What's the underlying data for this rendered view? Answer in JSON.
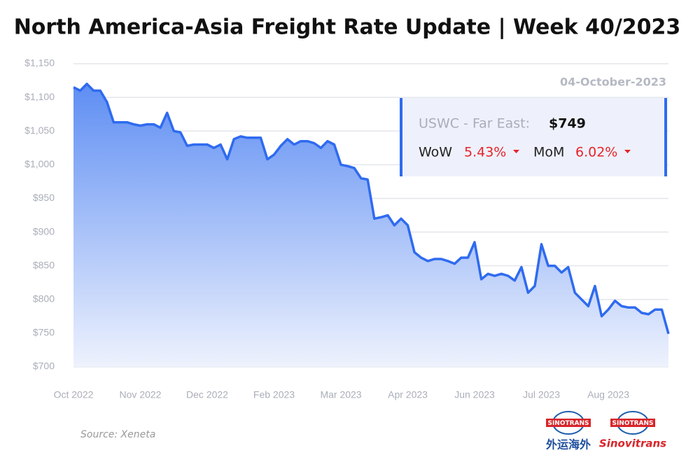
{
  "chart_data": {
    "type": "area",
    "title": "North America-Asia Freight Rate Update | Week 40/2023",
    "values": [
      1115,
      1110,
      1120,
      1110,
      1110,
      1093,
      1063,
      1063,
      1063,
      1060,
      1058,
      1060,
      1060,
      1055,
      1077,
      1050,
      1048,
      1028,
      1030,
      1030,
      1030,
      1025,
      1030,
      1008,
      1038,
      1042,
      1040,
      1040,
      1040,
      1008,
      1015,
      1028,
      1038,
      1030,
      1035,
      1035,
      1032,
      1025,
      1035,
      1030,
      1000,
      998,
      995,
      980,
      978,
      920,
      922,
      925,
      910,
      920,
      910,
      870,
      862,
      857,
      860,
      860,
      857,
      853,
      862,
      862,
      885,
      830,
      838,
      835,
      838,
      835,
      828,
      848,
      810,
      820,
      882,
      850,
      850,
      840,
      848,
      810,
      800,
      790,
      820,
      775,
      785,
      798,
      790,
      788,
      788,
      780,
      778,
      785,
      785,
      749
    ],
    "color": "#2f6bef",
    "xlim": [
      0,
      89
    ],
    "xticks": [
      {
        "value": 0,
        "label": "Oct 2022"
      },
      {
        "value": 10,
        "label": "Nov 2022"
      },
      {
        "value": 20,
        "label": "Dec 2022"
      },
      {
        "value": 30,
        "label": "Feb 2023"
      },
      {
        "value": 40,
        "label": "Mar 2023"
      },
      {
        "value": 50,
        "label": "Apr 2023"
      },
      {
        "value": 60,
        "label": "Jun 2023"
      },
      {
        "value": 70,
        "label": "Jul 2023"
      },
      {
        "value": 80,
        "label": "Aug 2023"
      }
    ],
    "ylim": [
      700,
      1150
    ],
    "yticks": [
      {
        "value": 700,
        "label": "$700"
      },
      {
        "value": 750,
        "label": "$750"
      },
      {
        "value": 800,
        "label": "$800"
      },
      {
        "value": 850,
        "label": "$850"
      },
      {
        "value": 900,
        "label": "$900"
      },
      {
        "value": 950,
        "label": "$950"
      },
      {
        "value": 1000,
        "label": "$1,000"
      },
      {
        "value": 1050,
        "label": "$1,050"
      },
      {
        "value": 1100,
        "label": "$1,100"
      },
      {
        "value": 1150,
        "label": "$1,150"
      }
    ],
    "grid": true,
    "annotation": {
      "date": "04-October-2023",
      "route": "USWC - Far East:",
      "price": "$749",
      "wow_label": "WoW",
      "wow": "5.43%",
      "mom_label": "MoM",
      "mom": "6.02%"
    },
    "source": "Source: Xeneta",
    "logos": {
      "brand": "SINOTRANS",
      "chinese": "外运海外",
      "english": "Sinovitrans"
    }
  }
}
